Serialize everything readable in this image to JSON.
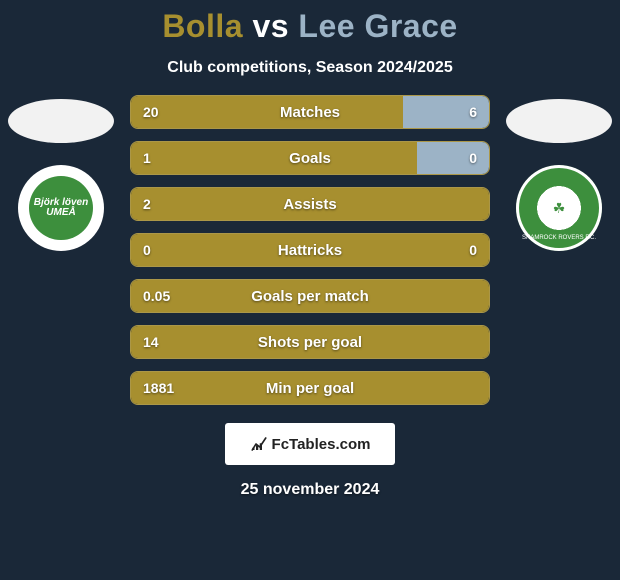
{
  "title_player1": "Bolla",
  "title_vs": "vs",
  "title_player2": "Lee Grace",
  "title_p1_color": "#a78f2f",
  "title_vs_color": "#ffffff",
  "title_p2_color": "#9cb3c6",
  "subtitle": "Club competitions, Season 2024/2025",
  "colors": {
    "bg": "#1a2838",
    "p1": "#a78f2f",
    "p2": "#9cb3c6",
    "border": "#ab9748"
  },
  "club_left_text": "Björk löven UMEÅ",
  "club_right_text": "SHAMROCK ROVERS F.C.",
  "stats": [
    {
      "label": "Matches",
      "v1": "20",
      "v2": "6",
      "p1_width": 76,
      "p2_width": 24
    },
    {
      "label": "Goals",
      "v1": "1",
      "v2": "0",
      "p1_width": 80,
      "p2_width": 20
    },
    {
      "label": "Assists",
      "v1": "2",
      "v2": "",
      "p1_width": 100,
      "p2_width": 0
    },
    {
      "label": "Hattricks",
      "v1": "0",
      "v2": "0",
      "p1_width": 100,
      "p2_width": 0
    },
    {
      "label": "Goals per match",
      "v1": "0.05",
      "v2": "",
      "p1_width": 100,
      "p2_width": 0
    },
    {
      "label": "Shots per goal",
      "v1": "14",
      "v2": "",
      "p1_width": 100,
      "p2_width": 0
    },
    {
      "label": "Min per goal",
      "v1": "1881",
      "v2": "",
      "p1_width": 100,
      "p2_width": 0
    }
  ],
  "footer_brand": "FcTables.com",
  "date": "25 november 2024"
}
